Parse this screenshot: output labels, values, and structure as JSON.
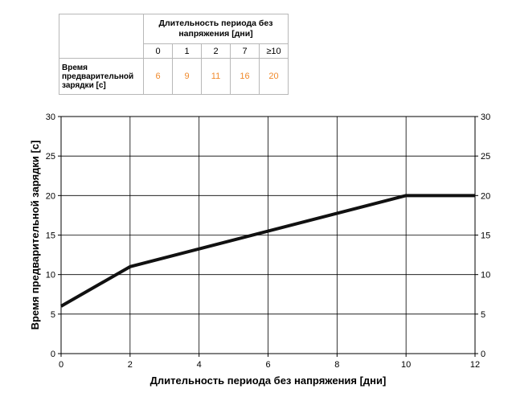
{
  "table": {
    "header": "Длительность периода без напряжения [дни]",
    "columns": [
      "0",
      "1",
      "2",
      "7",
      "≥10"
    ],
    "row_label": "Время предварительной зарядки [с]",
    "values": [
      "6",
      "9",
      "11",
      "16",
      "20"
    ]
  },
  "colors": {
    "table_values": "#f08a2c",
    "line": "#111111",
    "grid": "#000000"
  },
  "chart_data": {
    "type": "line",
    "xlabel": "Длительность периода без напряжения [дни]",
    "ylabel": "Время предварительной зарядки [с]",
    "xlim": [
      0,
      12
    ],
    "ylim": [
      0,
      30
    ],
    "x_ticks": [
      "0",
      "2",
      "4",
      "6",
      "8",
      "10",
      "12"
    ],
    "y_ticks": [
      "0",
      "5",
      "10",
      "15",
      "20",
      "25",
      "30"
    ],
    "y_ticks_right": [
      "0",
      "5",
      "10",
      "15",
      "20",
      "25",
      "30"
    ],
    "grid": true,
    "series": [
      {
        "x": [
          0,
          2,
          10,
          12
        ],
        "values": [
          6,
          11,
          20,
          20
        ]
      }
    ]
  }
}
